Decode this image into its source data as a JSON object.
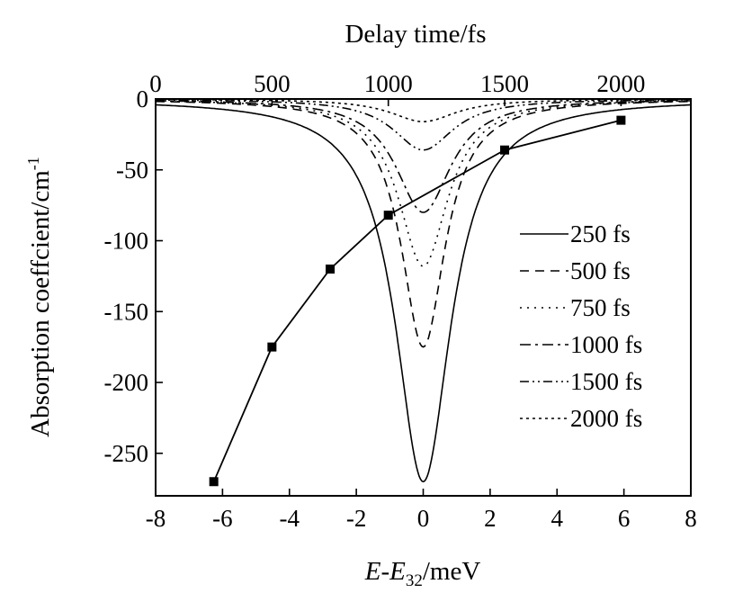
{
  "chart_data": {
    "type": "line",
    "top_axis": {
      "label": "Delay time/fs",
      "ticks": [
        0,
        500,
        1000,
        1500,
        2000
      ],
      "range": [
        0,
        2300
      ]
    },
    "bottom_axis": {
      "label_main": "E",
      "label_dash": "-",
      "label_sub_base": "E",
      "label_sub": "32",
      "label_unit": "/meV",
      "ticks": [
        -8,
        -6,
        -4,
        -2,
        0,
        2,
        4,
        6,
        8
      ],
      "range": [
        -8,
        8
      ]
    },
    "y_axis": {
      "label": "Absorption coeffcient/cm",
      "label_sup": "-1",
      "ticks": [
        0,
        -50,
        -100,
        -150,
        -200,
        -250
      ],
      "range": [
        -280,
        0
      ]
    },
    "lorentzian_series": [
      {
        "name": "250 fs",
        "dash": "",
        "center_meV": 0,
        "peak": -270,
        "hwhm_meV": 1.0
      },
      {
        "name": "500 fs",
        "dash": "10,7",
        "center_meV": 0,
        "peak": -175,
        "hwhm_meV": 0.8
      },
      {
        "name": "750 fs",
        "dash": "2,6",
        "center_meV": 0,
        "peak": -118,
        "hwhm_meV": 0.9
      },
      {
        "name": "1000 fs",
        "dash": "12,5,3,5",
        "center_meV": 0,
        "peak": -80,
        "hwhm_meV": 1.0
      },
      {
        "name": "1500 fs",
        "dash": "10,4,2,4,2,4",
        "center_meV": 0,
        "peak": -36,
        "hwhm_meV": 1.1
      },
      {
        "name": "2000 fs",
        "dash": "3,4",
        "center_meV": 0,
        "peak": -16,
        "hwhm_meV": 1.2
      }
    ],
    "peak_vs_delay": {
      "x_delay_fs": [
        250,
        500,
        750,
        1000,
        1500,
        2000
      ],
      "y": [
        -270,
        -175,
        -120,
        -82,
        -36,
        -15
      ],
      "marker": "square"
    },
    "legend": {
      "position": "right",
      "entries": [
        "250 fs",
        "500 fs",
        "750 fs",
        "1000 fs",
        "1500 fs",
        "2000 fs"
      ]
    }
  }
}
